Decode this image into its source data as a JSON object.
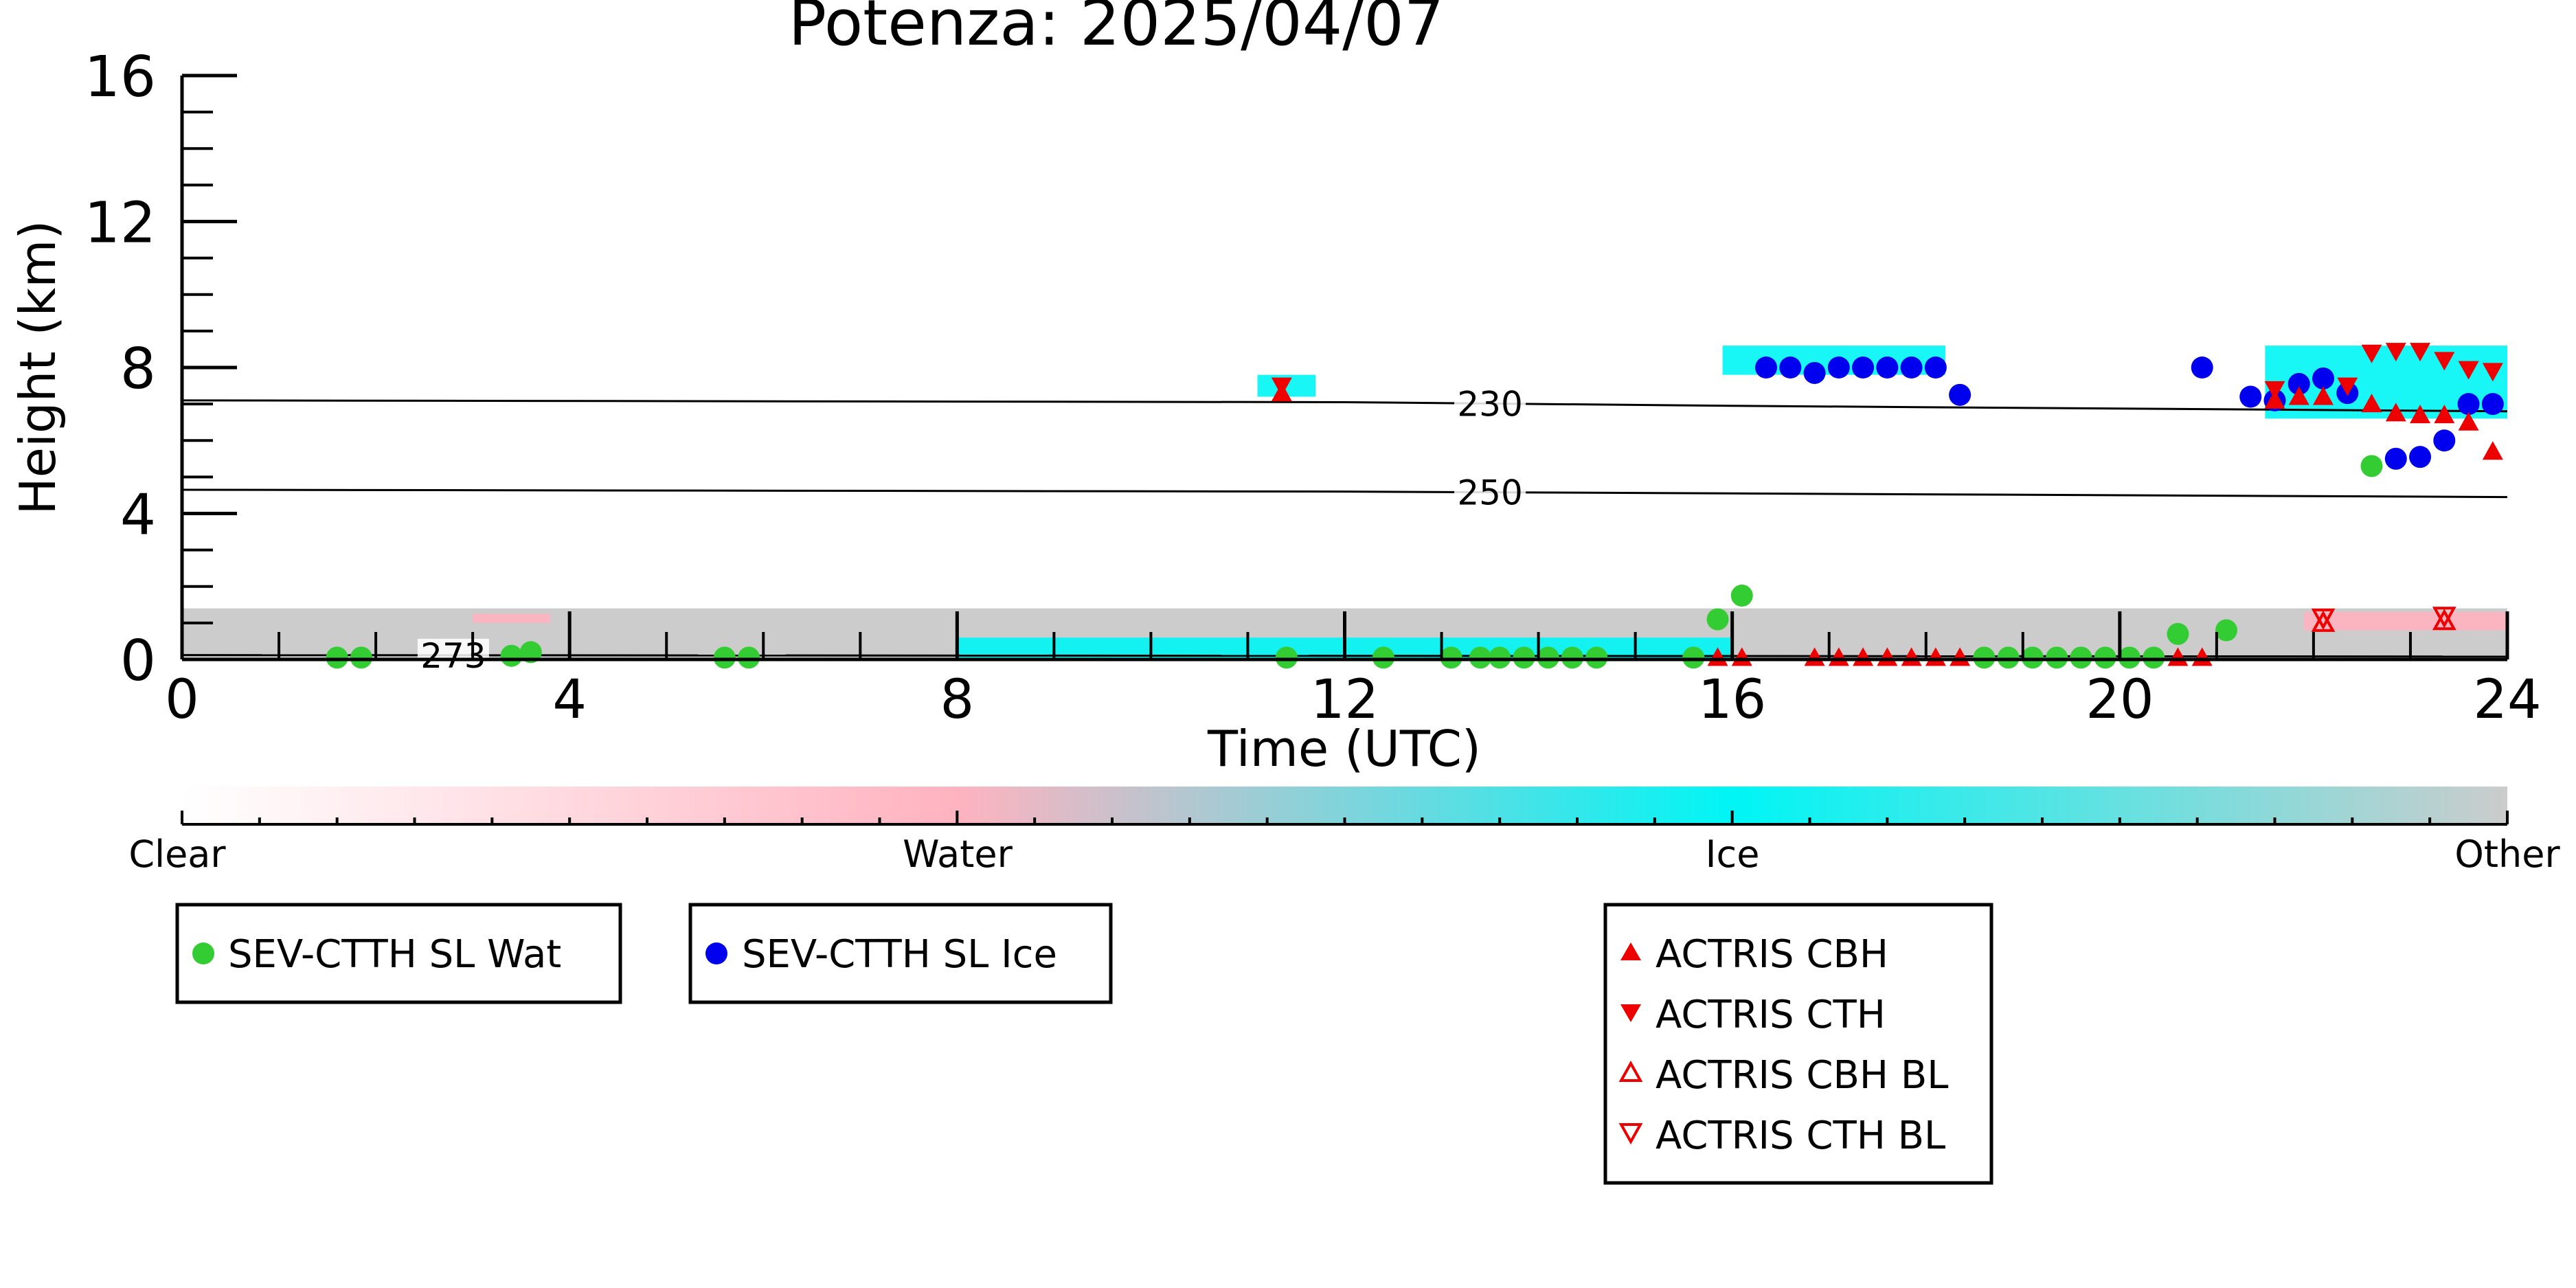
{
  "chart_data": {
    "type": "scatter",
    "title": "Potenza: 2025/04/07",
    "xlabel": "Time (UTC)",
    "ylabel": "Height (km)",
    "xlim": [
      0,
      24
    ],
    "ylim": [
      0,
      16
    ],
    "x_ticks": [
      0,
      4,
      8,
      12,
      16,
      20,
      24
    ],
    "y_ticks": [
      0,
      4,
      8,
      12,
      16
    ],
    "grid": false,
    "legend_position": "below",
    "colorbar": {
      "labels": [
        "Clear",
        "Water",
        "Ice",
        "Other"
      ],
      "colors": [
        "#ffffff",
        "#ffb3c0",
        "#00f5f5",
        "#cccccc"
      ]
    },
    "contours": [
      {
        "label": "230",
        "points": [
          [
            0,
            7.1
          ],
          [
            12,
            7.05
          ],
          [
            16,
            6.95
          ],
          [
            24,
            6.8
          ]
        ]
      },
      {
        "label": "250",
        "points": [
          [
            0,
            4.65
          ],
          [
            12,
            4.6
          ],
          [
            16,
            4.55
          ],
          [
            24,
            4.45
          ]
        ]
      },
      {
        "label": "273",
        "points": [
          [
            0,
            0.12
          ],
          [
            12,
            0.1
          ],
          [
            24,
            0.08
          ]
        ]
      }
    ],
    "series": [
      {
        "name": "SEV-CTTH SL Wat",
        "color": "#33cc33",
        "marker": "circle",
        "points": [
          [
            1.6,
            0.05
          ],
          [
            1.85,
            0.05
          ],
          [
            3.4,
            0.1
          ],
          [
            3.6,
            0.2
          ],
          [
            5.6,
            0.05
          ],
          [
            5.85,
            0.05
          ],
          [
            11.4,
            0.05
          ],
          [
            12.4,
            0.05
          ],
          [
            13.1,
            0.05
          ],
          [
            13.4,
            0.05
          ],
          [
            13.6,
            0.05
          ],
          [
            13.85,
            0.05
          ],
          [
            14.1,
            0.05
          ],
          [
            14.35,
            0.05
          ],
          [
            14.6,
            0.05
          ],
          [
            15.6,
            0.05
          ],
          [
            15.85,
            1.1
          ],
          [
            16.1,
            1.75
          ],
          [
            18.6,
            0.05
          ],
          [
            18.85,
            0.05
          ],
          [
            19.1,
            0.05
          ],
          [
            19.35,
            0.05
          ],
          [
            19.6,
            0.05
          ],
          [
            19.85,
            0.05
          ],
          [
            20.1,
            0.05
          ],
          [
            20.35,
            0.05
          ],
          [
            20.6,
            0.7
          ],
          [
            21.1,
            0.8
          ],
          [
            22.6,
            5.3
          ]
        ]
      },
      {
        "name": "SEV-CTTH SL Ice",
        "color": "#0000ee",
        "marker": "circle",
        "points": [
          [
            16.35,
            8.0
          ],
          [
            16.6,
            8.0
          ],
          [
            16.85,
            7.85
          ],
          [
            17.1,
            8.0
          ],
          [
            17.35,
            8.0
          ],
          [
            17.6,
            8.0
          ],
          [
            17.85,
            8.0
          ],
          [
            18.1,
            8.0
          ],
          [
            18.35,
            7.25
          ],
          [
            20.85,
            8.0
          ],
          [
            21.35,
            7.2
          ],
          [
            21.6,
            7.1
          ],
          [
            21.85,
            7.55
          ],
          [
            22.1,
            7.7
          ],
          [
            22.35,
            7.3
          ],
          [
            22.85,
            5.5
          ],
          [
            23.1,
            5.55
          ],
          [
            23.35,
            6.0
          ],
          [
            23.6,
            7.0
          ],
          [
            23.85,
            7.0
          ]
        ]
      },
      {
        "name": "ACTRIS CBH",
        "color": "#ee0000",
        "marker": "triangle-up",
        "points": [
          [
            11.35,
            7.3
          ],
          [
            15.85,
            0.05
          ],
          [
            16.1,
            0.05
          ],
          [
            16.85,
            0.05
          ],
          [
            17.1,
            0.05
          ],
          [
            17.35,
            0.05
          ],
          [
            17.6,
            0.05
          ],
          [
            17.85,
            0.05
          ],
          [
            18.1,
            0.05
          ],
          [
            18.35,
            0.05
          ],
          [
            20.6,
            0.05
          ],
          [
            20.85,
            0.05
          ],
          [
            21.6,
            7.1
          ],
          [
            21.85,
            7.2
          ],
          [
            22.1,
            7.2
          ],
          [
            22.6,
            7.0
          ],
          [
            22.85,
            6.75
          ],
          [
            23.1,
            6.7
          ],
          [
            23.35,
            6.7
          ],
          [
            23.6,
            6.5
          ],
          [
            23.85,
            5.7
          ]
        ]
      },
      {
        "name": "ACTRIS CTH",
        "color": "#ee0000",
        "marker": "triangle-down",
        "points": [
          [
            11.35,
            7.5
          ],
          [
            21.6,
            7.4
          ],
          [
            22.35,
            7.5
          ],
          [
            22.6,
            8.4
          ],
          [
            22.85,
            8.45
          ],
          [
            23.1,
            8.45
          ],
          [
            23.35,
            8.2
          ],
          [
            23.6,
            7.95
          ],
          [
            23.85,
            7.9
          ]
        ]
      },
      {
        "name": "ACTRIS CBH BL",
        "color": "#ee0000",
        "marker": "triangle-up-open",
        "points": [
          [
            22.1,
            1.0
          ],
          [
            23.35,
            1.05
          ]
        ]
      },
      {
        "name": "ACTRIS CTH BL",
        "color": "#ee0000",
        "marker": "triangle-down-open",
        "points": [
          [
            22.1,
            1.15
          ],
          [
            23.35,
            1.2
          ]
        ]
      }
    ],
    "cloud_mask_regions": [
      {
        "class": "Other",
        "x": [
          0,
          24
        ],
        "y": [
          0,
          1.4
        ]
      },
      {
        "class": "Water",
        "x": [
          3,
          3.8
        ],
        "y": [
          1.0,
          1.25
        ]
      },
      {
        "class": "Ice",
        "x": [
          8,
          16
        ],
        "y": [
          0,
          0.6
        ]
      },
      {
        "class": "Ice",
        "x": [
          11.1,
          11.7
        ],
        "y": [
          7.2,
          7.8
        ]
      },
      {
        "class": "Ice",
        "x": [
          15.9,
          18.2
        ],
        "y": [
          7.8,
          8.6
        ]
      },
      {
        "class": "Ice",
        "x": [
          21.5,
          24
        ],
        "y": [
          6.6,
          8.6
        ]
      },
      {
        "class": "Water",
        "x": [
          21.9,
          24
        ],
        "y": [
          0.8,
          1.3
        ]
      }
    ]
  }
}
